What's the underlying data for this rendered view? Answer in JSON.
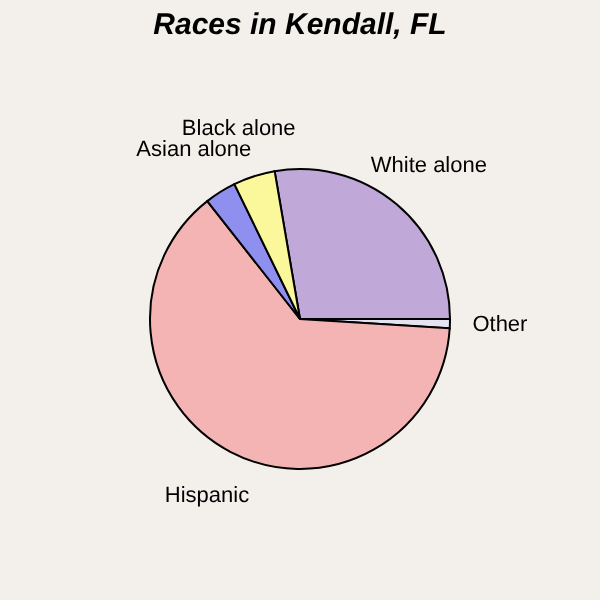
{
  "chart_data": {
    "type": "pie",
    "title": "Races in Kendall, FL",
    "categories": [
      "White alone",
      "Other",
      "Hispanic",
      "Asian alone",
      "Black alone"
    ],
    "values": [
      27.7,
      1,
      63.4,
      3.4,
      4.5
    ],
    "colors": [
      "#c0a8d8",
      "#e4e4f0",
      "#f4b4b4",
      "#8f8ff0",
      "#fbf79b"
    ]
  }
}
